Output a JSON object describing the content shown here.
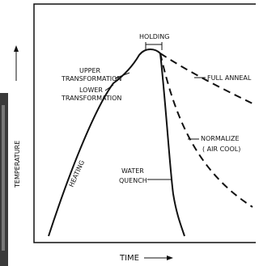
{
  "diagram": {
    "axis_labels": {
      "y": "TEMPERATURE",
      "x": "TIME"
    },
    "labels": {
      "holding": "HOLDING",
      "upper": [
        "UPPER",
        "TRANSFORMATION"
      ],
      "lower": [
        "LOWER",
        "TRANSFORMATION"
      ],
      "heating": "HEATING",
      "water_quench": [
        "WATER",
        "QUENCH"
      ],
      "full_anneal": "FULL ANNEAL",
      "normalize": [
        "NORMALIZE",
        "( AIR COOL)"
      ]
    }
  }
}
